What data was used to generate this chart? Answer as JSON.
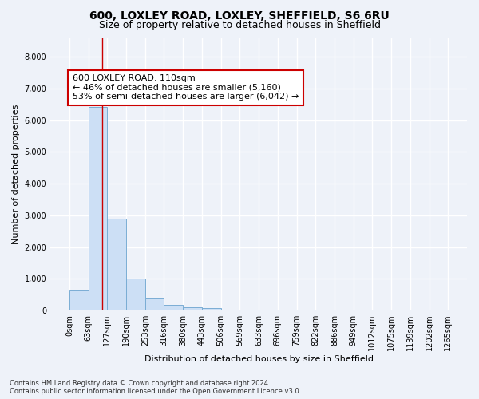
{
  "title_line1": "600, LOXLEY ROAD, LOXLEY, SHEFFIELD, S6 6RU",
  "title_line2": "Size of property relative to detached houses in Sheffield",
  "xlabel": "Distribution of detached houses by size in Sheffield",
  "ylabel": "Number of detached properties",
  "bar_color": "#ccdff5",
  "bar_edge_color": "#7aadd4",
  "background_color": "#eef2f9",
  "grid_color": "#ffffff",
  "bin_width": 63,
  "num_bins": 20,
  "bar_heights": [
    620,
    6420,
    2900,
    1010,
    380,
    170,
    100,
    80,
    0,
    0,
    0,
    0,
    0,
    0,
    0,
    0,
    0,
    0,
    0,
    0
  ],
  "tick_labels": [
    "0sqm",
    "63sqm",
    "127sqm",
    "190sqm",
    "253sqm",
    "316sqm",
    "380sqm",
    "443sqm",
    "506sqm",
    "569sqm",
    "633sqm",
    "696sqm",
    "759sqm",
    "822sqm",
    "886sqm",
    "949sqm",
    "1012sqm",
    "1075sqm",
    "1139sqm",
    "1202sqm",
    "1265sqm"
  ],
  "ylim": [
    0,
    8600
  ],
  "yticks": [
    0,
    1000,
    2000,
    3000,
    4000,
    5000,
    6000,
    7000,
    8000
  ],
  "property_size": 110,
  "annotation_text": "600 LOXLEY ROAD: 110sqm\n← 46% of detached houses are smaller (5,160)\n53% of semi-detached houses are larger (6,042) →",
  "annotation_box_color": "#ffffff",
  "annotation_border_color": "#cc0000",
  "footer_text": "Contains HM Land Registry data © Crown copyright and database right 2024.\nContains public sector information licensed under the Open Government Licence v3.0.",
  "title_fontsize": 10,
  "subtitle_fontsize": 9,
  "axis_label_fontsize": 8,
  "tick_fontsize": 7,
  "annotation_fontsize": 8,
  "ylabel_fontsize": 8
}
